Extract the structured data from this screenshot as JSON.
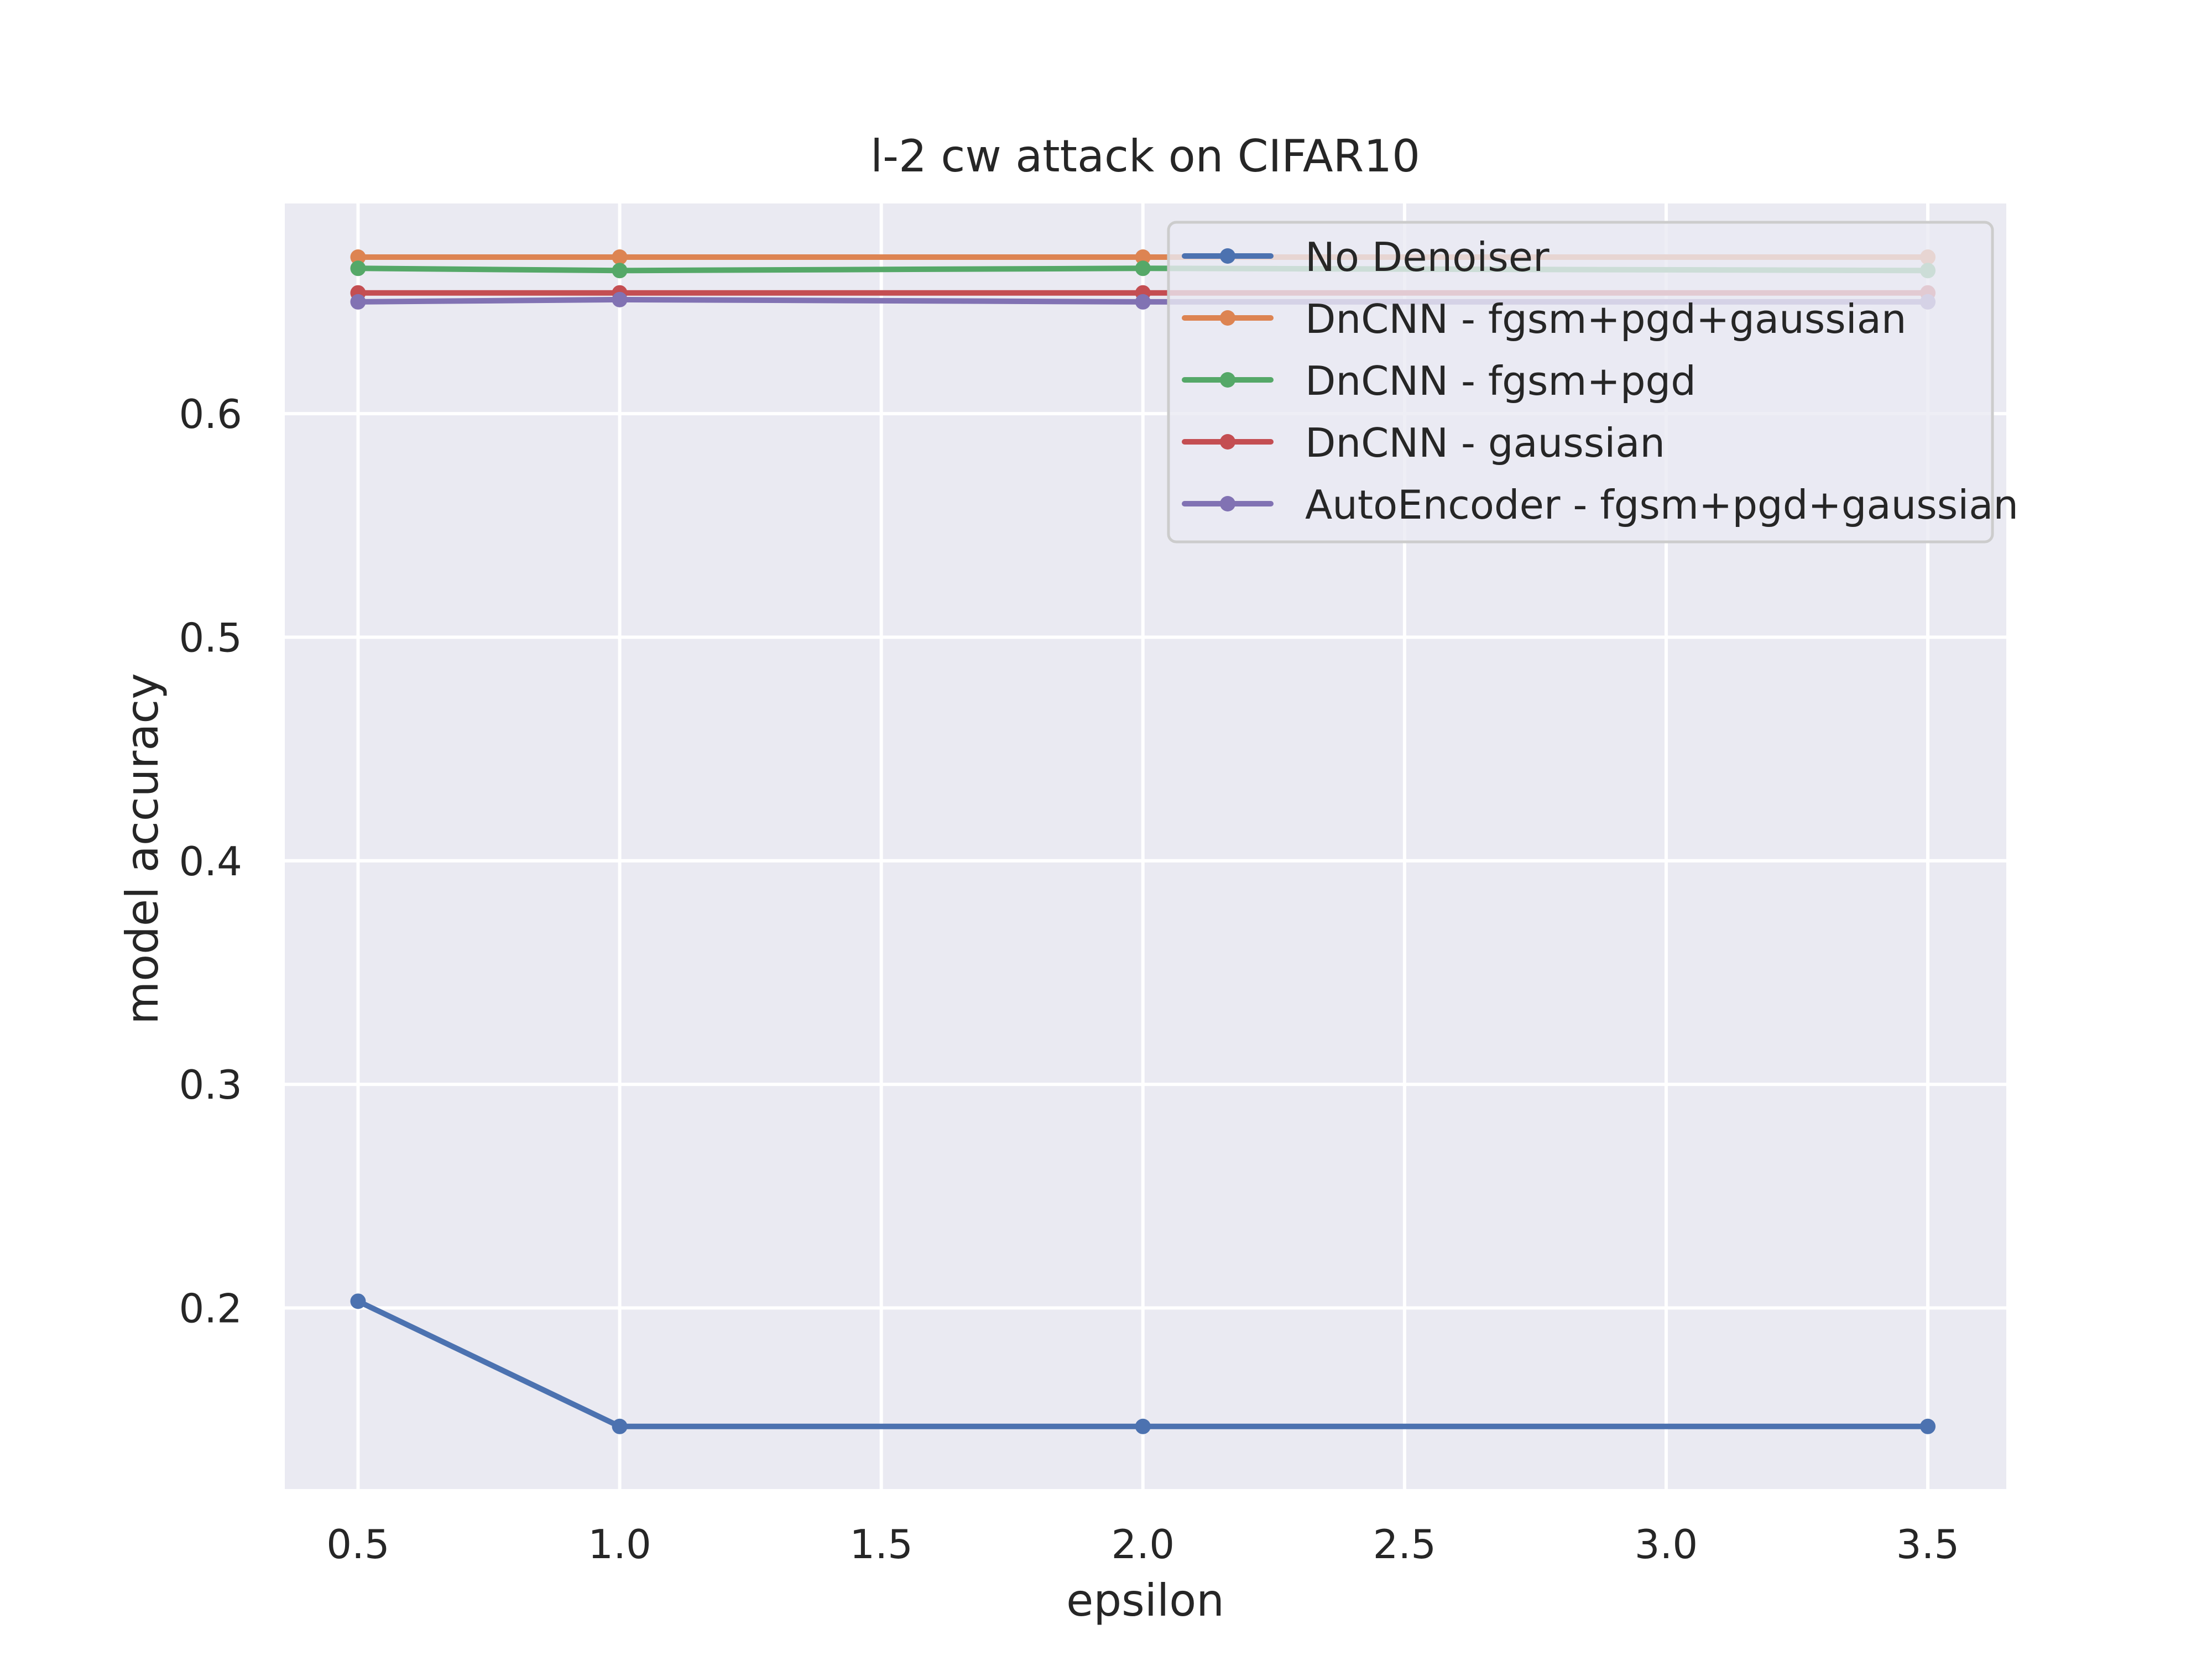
{
  "chart_data": {
    "type": "line",
    "title": "l-2 cw attack on CIFAR10",
    "xlabel": "epsilon",
    "ylabel": "model accuracy",
    "x": [
      0.5,
      1.0,
      2.0,
      3.5
    ],
    "xlim": [
      0.36,
      3.65
    ],
    "ylim": [
      0.119,
      0.694
    ],
    "xticks": [
      0.5,
      1.0,
      1.5,
      2.0,
      2.5,
      3.0,
      3.5
    ],
    "xtick_labels": [
      "0.5",
      "1.0",
      "1.5",
      "2.0",
      "2.5",
      "3.0",
      "3.5"
    ],
    "yticks": [
      0.2,
      0.3,
      0.4,
      0.5,
      0.6
    ],
    "ytick_labels": [
      "0.2",
      "0.3",
      "0.4",
      "0.5",
      "0.6"
    ],
    "grid": true,
    "legend_position": "upper right",
    "background_color": "#eaeaf2",
    "grid_color": "#ffffff",
    "series": [
      {
        "name": "No Denoiser",
        "color": "#4c72b0",
        "values": [
          0.203,
          0.147,
          0.147,
          0.147
        ]
      },
      {
        "name": "DnCNN - fgsm+pgd+gaussian",
        "color": "#dd8452",
        "values": [
          0.67,
          0.67,
          0.67,
          0.67
        ]
      },
      {
        "name": "DnCNN - fgsm+pgd",
        "color": "#55a868",
        "values": [
          0.665,
          0.664,
          0.665,
          0.664
        ]
      },
      {
        "name": "DnCNN - gaussian",
        "color": "#c44e52",
        "values": [
          0.654,
          0.654,
          0.654,
          0.654
        ]
      },
      {
        "name": "AutoEncoder - fgsm+pgd+gaussian",
        "color": "#8172b3",
        "values": [
          0.65,
          0.651,
          0.65,
          0.65
        ]
      }
    ]
  }
}
